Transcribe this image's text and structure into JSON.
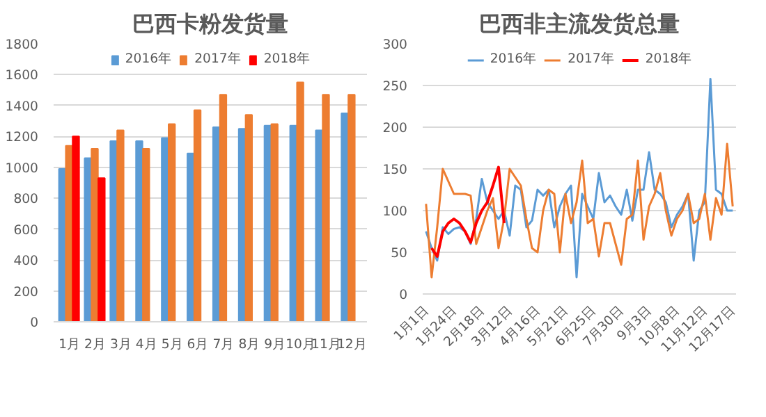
{
  "chart_data": [
    {
      "type": "bar",
      "title": "巴西卡粉发货量",
      "categories": [
        "1月",
        "2月",
        "3月",
        "4月",
        "5月",
        "6月",
        "7月",
        "8月",
        "9月",
        "10月",
        "11月",
        "12月"
      ],
      "series": [
        {
          "name": "2016年",
          "color": "#5b9bd5",
          "values": [
            990,
            1060,
            1170,
            1170,
            1190,
            1090,
            1260,
            1250,
            1270,
            1270,
            1240,
            1350
          ]
        },
        {
          "name": "2017年",
          "color": "#ed7d31",
          "values": [
            1140,
            1120,
            1240,
            1120,
            1280,
            1370,
            1470,
            1340,
            1280,
            1550,
            1470,
            1470
          ]
        },
        {
          "name": "2018年",
          "color": "#ff0000",
          "values": [
            1200,
            930,
            null,
            null,
            null,
            null,
            null,
            null,
            null,
            null,
            null,
            null
          ]
        }
      ],
      "ylim": [
        0,
        1800
      ],
      "yticks": [
        0,
        200,
        400,
        600,
        800,
        1000,
        1200,
        1400,
        1600,
        1800
      ],
      "grid": "y",
      "legend": "top"
    },
    {
      "type": "line",
      "title": "巴西非主流发货总量",
      "categories": [
        "1月1日",
        null,
        null,
        null,
        null,
        "1月24日",
        null,
        null,
        null,
        null,
        "2月18日",
        null,
        null,
        null,
        null,
        "3月12日",
        null,
        null,
        null,
        null,
        "4月16日",
        null,
        null,
        null,
        null,
        "5月21日",
        null,
        null,
        null,
        null,
        "6月25日",
        null,
        null,
        null,
        null,
        "7月30日",
        null,
        null,
        null,
        null,
        "9月3日",
        null,
        null,
        null,
        null,
        "10月8日",
        null,
        null,
        null,
        null,
        "11月12日",
        null,
        null,
        null,
        null,
        "12月17日"
      ],
      "series": [
        {
          "name": "2016年",
          "color": "#5b9bd5",
          "values": [
            75,
            55,
            40,
            80,
            72,
            78,
            80,
            75,
            60,
            90,
            138,
            110,
            100,
            90,
            100,
            70,
            130,
            125,
            80,
            88,
            125,
            118,
            125,
            80,
            105,
            120,
            130,
            20,
            120,
            105,
            90,
            145,
            110,
            118,
            105,
            95,
            125,
            88,
            125,
            125,
            170,
            125,
            120,
            110,
            80,
            95,
            105,
            120,
            40,
            100,
            110,
            258,
            125,
            120,
            100,
            100
          ]
        },
        {
          "name": "2017年",
          "color": "#ed7d31",
          "values": [
            108,
            20,
            80,
            150,
            135,
            120,
            120,
            120,
            118,
            60,
            80,
            100,
            115,
            55,
            90,
            150,
            140,
            130,
            90,
            55,
            50,
            100,
            125,
            120,
            50,
            120,
            85,
            110,
            160,
            85,
            90,
            45,
            85,
            85,
            60,
            35,
            90,
            95,
            160,
            65,
            105,
            120,
            145,
            100,
            70,
            90,
            100,
            120,
            85,
            90,
            120,
            65,
            115,
            95,
            180,
            105
          ]
        },
        {
          "name": "2018年",
          "color": "#ff0000",
          "values": [
            null,
            55,
            45,
            75,
            85,
            90,
            85,
            75,
            62,
            85,
            100,
            110,
            130,
            152,
            85,
            null,
            null,
            null,
            null,
            null,
            null,
            null,
            null,
            null,
            null,
            null,
            null,
            null,
            null,
            null,
            null,
            null,
            null,
            null,
            null,
            null,
            null,
            null,
            null,
            null,
            null,
            null,
            null,
            null,
            null,
            null,
            null,
            null,
            null,
            null,
            null,
            null,
            null,
            null,
            null,
            null
          ]
        }
      ],
      "ylim": [
        0,
        300
      ],
      "yticks": [
        0,
        50,
        100,
        150,
        200,
        250,
        300
      ],
      "grid": "y",
      "legend": "top"
    }
  ]
}
